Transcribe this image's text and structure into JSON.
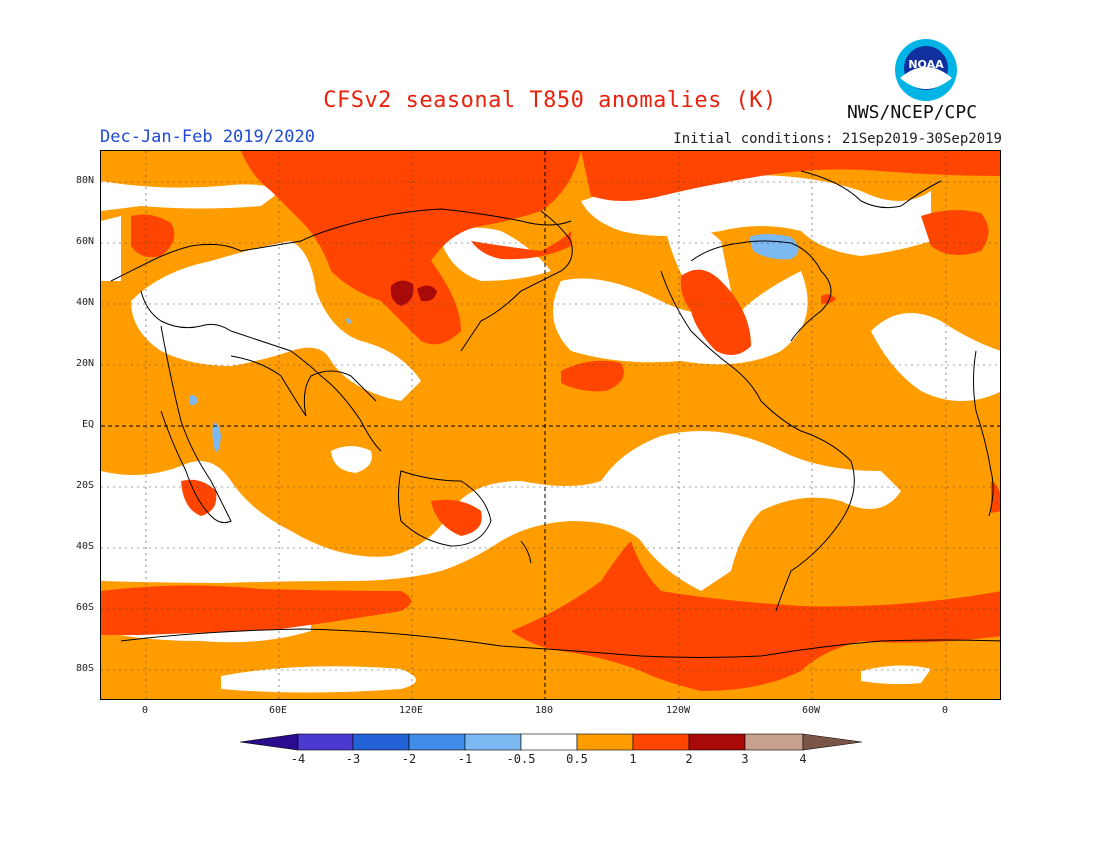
{
  "title": "CFSv2 seasonal T850 anomalies (K)",
  "season": "Dec-Jan-Feb 2019/2020",
  "initial_conditions": "Initial conditions: 21Sep2019-30Sep2019",
  "agency": "NWS/NCEP/CPC",
  "logo_text": "NOAA",
  "lat_labels": [
    "80N",
    "60N",
    "40N",
    "20N",
    "EQ",
    "20S",
    "40S",
    "60S",
    "80S"
  ],
  "lon_labels": [
    "0",
    "60E",
    "120E",
    "180",
    "120W",
    "60W",
    "0"
  ],
  "colorbar": {
    "labels": [
      "-4",
      "-3",
      "-2",
      "-1",
      "-0.5",
      "0.5",
      "1",
      "2",
      "3",
      "4"
    ],
    "colors": [
      "#2a0c8f",
      "#4a3ad0",
      "#2361d6",
      "#3f8de8",
      "#7cb8f2",
      "#ffffff",
      "#ff9d00",
      "#ff4500",
      "#a80a0a",
      "#c8a090",
      "#7a5546"
    ]
  },
  "colors": {
    "warm_1": "#ff9d00",
    "warm_2": "#ff4500",
    "warm_3": "#a80a0a",
    "cool_1": "#7cb8f2",
    "title": "#e8210c",
    "season": "#1f49d6"
  }
}
